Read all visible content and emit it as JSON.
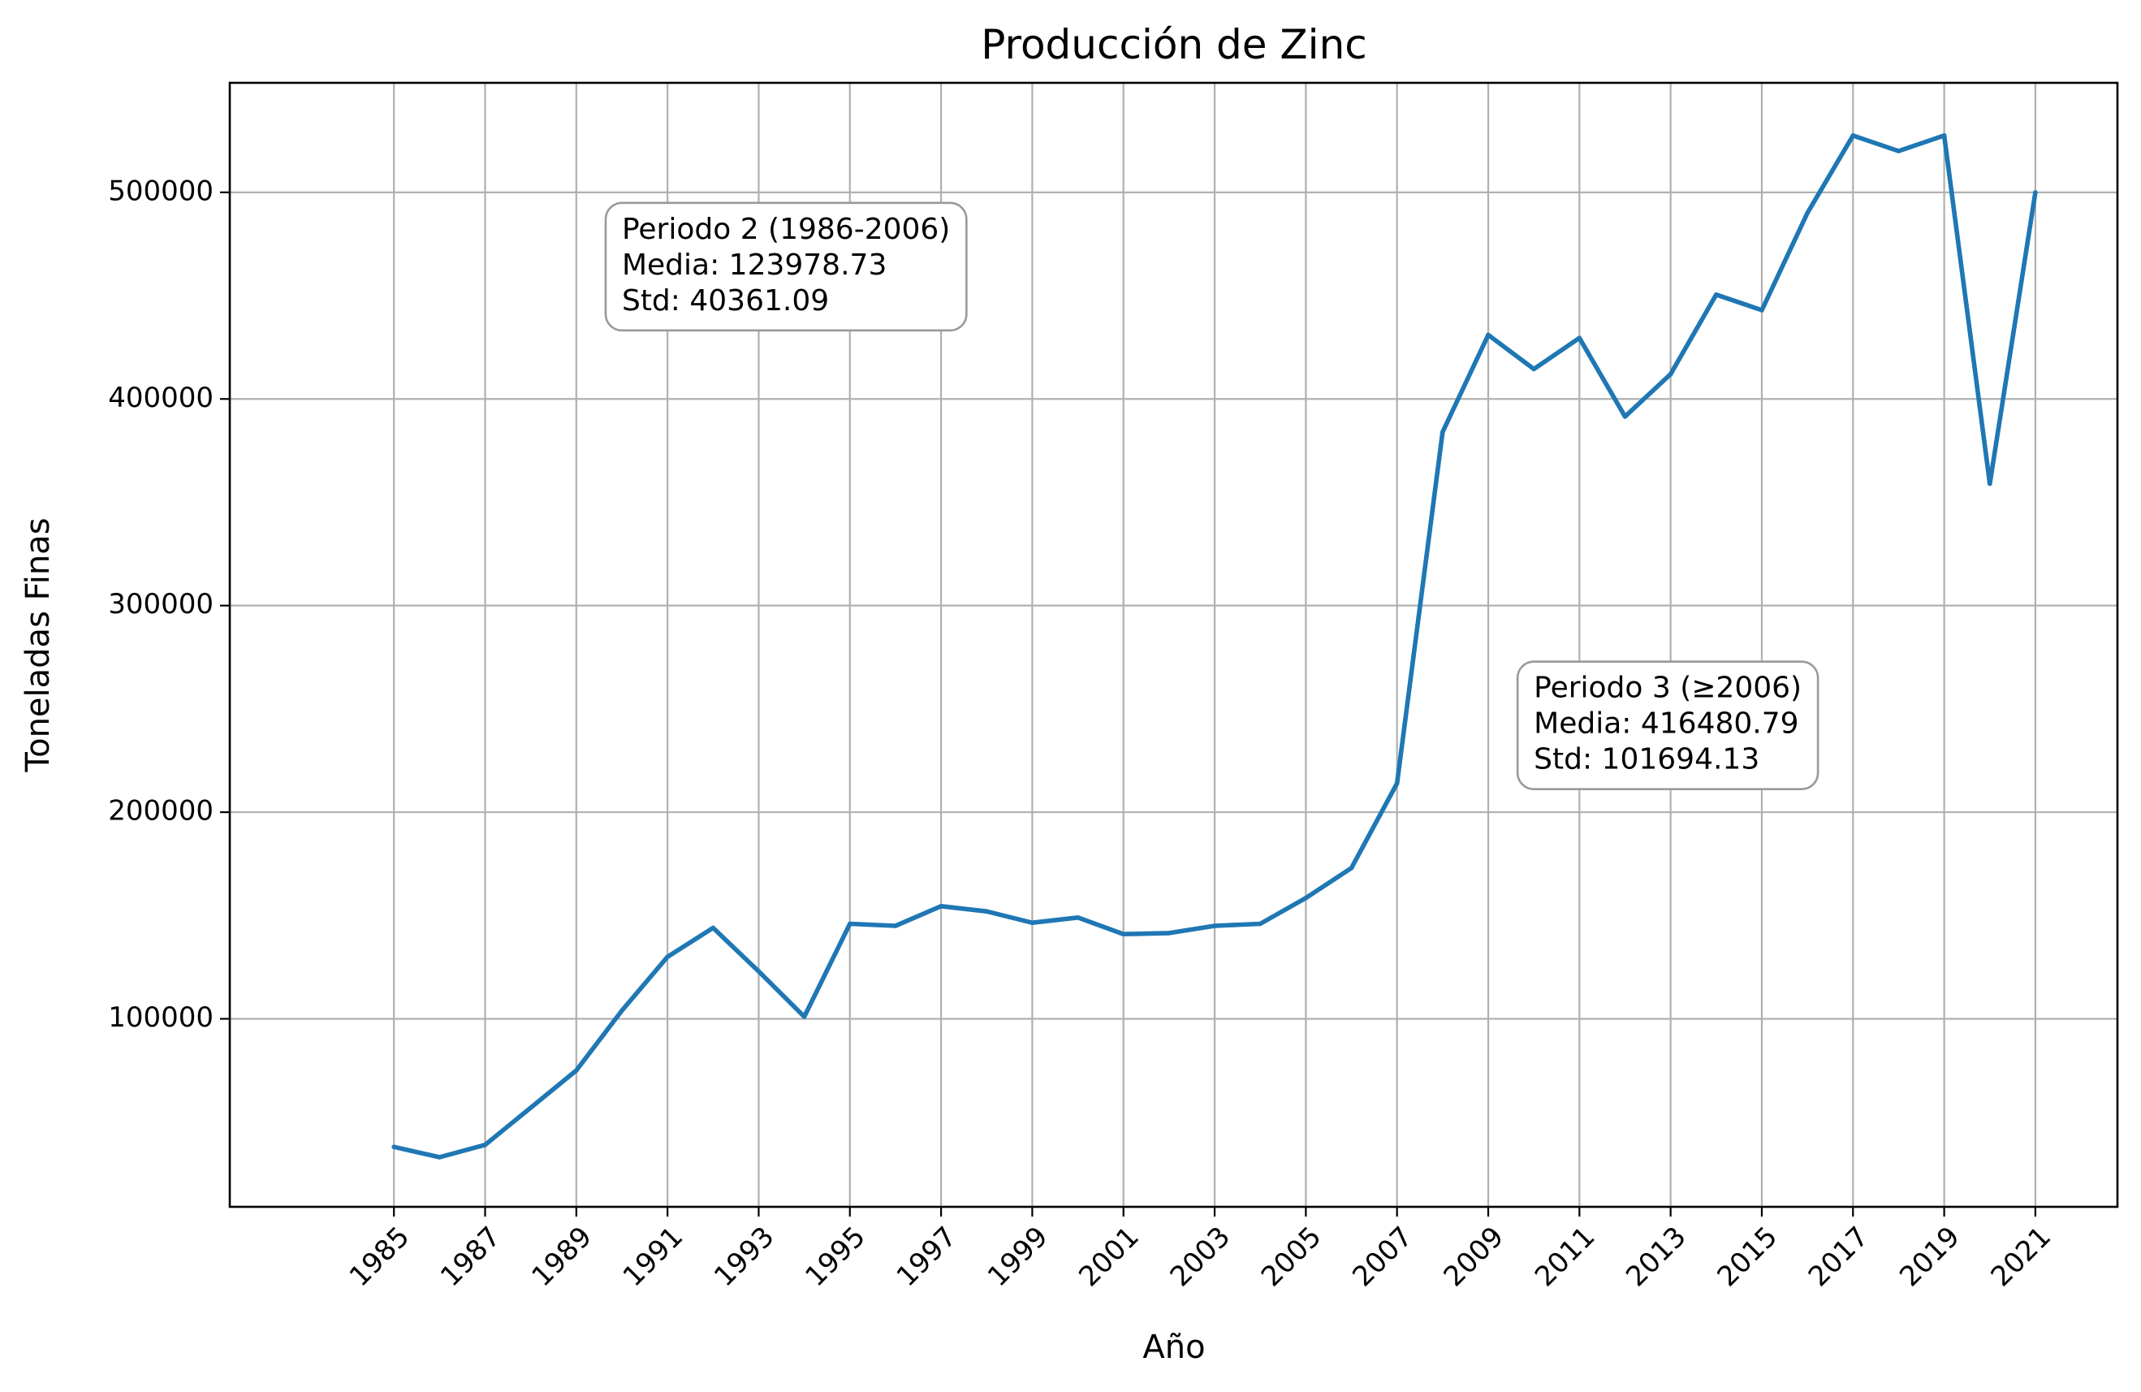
{
  "chart_data": {
    "type": "line",
    "title": "Producción de Zinc",
    "xlabel": "Año",
    "ylabel": "Toneladas Finas",
    "x": [
      1985,
      1986,
      1987,
      1988,
      1989,
      1990,
      1991,
      1992,
      1993,
      1994,
      1995,
      1996,
      1997,
      1998,
      1999,
      2000,
      2001,
      2002,
      2003,
      2004,
      2005,
      2006,
      2007,
      2008,
      2009,
      2010,
      2011,
      2012,
      2013,
      2014,
      2015,
      2016,
      2017,
      2018,
      2019,
      2020,
      2021
    ],
    "series": [
      {
        "color": "#1f77b4",
        "values": [
          38000,
          33000,
          39000,
          57000,
          75000,
          104000,
          130000,
          144000,
          123000,
          101000,
          146000,
          145000,
          154500,
          152000,
          146500,
          149000,
          141000,
          141500,
          145000,
          146000,
          158500,
          173000,
          214000,
          384000,
          431000,
          414500,
          429500,
          391500,
          412000,
          450500,
          443000,
          490000,
          527500,
          520000,
          527500,
          359000,
          500000
        ]
      }
    ],
    "xticks": [
      1985,
      1987,
      1989,
      1991,
      1993,
      1995,
      1997,
      1999,
      2001,
      2003,
      2005,
      2007,
      2009,
      2011,
      2013,
      2015,
      2017,
      2019,
      2021
    ],
    "yticks": [
      100000,
      200000,
      300000,
      400000,
      500000
    ],
    "xlim": [
      1981.4,
      2022.8
    ],
    "ylim": [
      9000,
      553000
    ],
    "grid": true,
    "annotations": [
      {
        "x": 1990,
        "y": 443000,
        "lines": [
          "Periodo 2 (1986-2006)",
          "Media: 123978.73",
          "Std: 40361.09"
        ]
      },
      {
        "x": 2010,
        "y": 221000,
        "lines": [
          "Periodo 3 (≥2006)",
          "Media: 416480.79",
          "Std: 101694.13"
        ]
      }
    ]
  }
}
